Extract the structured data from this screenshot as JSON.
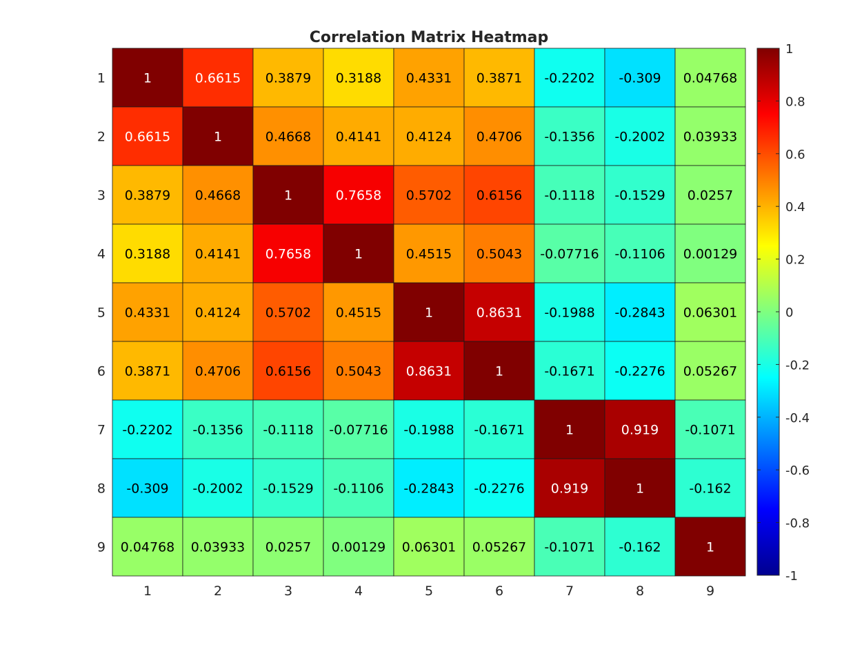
{
  "chart_data": {
    "type": "heatmap",
    "title": "Correlation Matrix Heatmap",
    "colormap": "jet",
    "x_labels": [
      "1",
      "2",
      "3",
      "4",
      "5",
      "6",
      "7",
      "8",
      "9"
    ],
    "y_labels": [
      "1",
      "2",
      "3",
      "4",
      "5",
      "6",
      "7",
      "8",
      "9"
    ],
    "values": [
      [
        1,
        0.6615,
        0.3879,
        0.3188,
        0.4331,
        0.3871,
        -0.2202,
        -0.309,
        0.04768
      ],
      [
        0.6615,
        1,
        0.4668,
        0.4141,
        0.4124,
        0.4706,
        -0.1356,
        -0.2002,
        0.03933
      ],
      [
        0.3879,
        0.4668,
        1,
        0.7658,
        0.5702,
        0.6156,
        -0.1118,
        -0.1529,
        0.0257
      ],
      [
        0.3188,
        0.4141,
        0.7658,
        1,
        0.4515,
        0.5043,
        -0.07716,
        -0.1106,
        0.00129
      ],
      [
        0.4331,
        0.4124,
        0.5702,
        0.4515,
        1,
        0.8631,
        -0.1988,
        -0.2843,
        0.06301
      ],
      [
        0.3871,
        0.4706,
        0.6156,
        0.5043,
        0.8631,
        1,
        -0.1671,
        -0.2276,
        0.05267
      ],
      [
        -0.2202,
        -0.1356,
        -0.1118,
        -0.07716,
        -0.1988,
        -0.1671,
        1,
        0.919,
        -0.1071
      ],
      [
        -0.309,
        -0.2002,
        -0.1529,
        -0.1106,
        -0.2843,
        -0.2276,
        0.919,
        1,
        -0.162
      ],
      [
        0.04768,
        0.03933,
        0.0257,
        0.00129,
        0.06301,
        0.05267,
        -0.1071,
        -0.162,
        1
      ]
    ],
    "cell_labels": [
      [
        "1",
        "0.6615",
        "0.3879",
        "0.3188",
        "0.4331",
        "0.3871",
        "-0.2202",
        "-0.309",
        "0.04768"
      ],
      [
        "0.6615",
        "1",
        "0.4668",
        "0.4141",
        "0.4124",
        "0.4706",
        "-0.1356",
        "-0.2002",
        "0.03933"
      ],
      [
        "0.3879",
        "0.4668",
        "1",
        "0.7658",
        "0.5702",
        "0.6156",
        "-0.1118",
        "-0.1529",
        "0.0257"
      ],
      [
        "0.3188",
        "0.4141",
        "0.7658",
        "1",
        "0.4515",
        "0.5043",
        "-0.07716",
        "-0.1106",
        "0.00129"
      ],
      [
        "0.4331",
        "0.4124",
        "0.5702",
        "0.4515",
        "1",
        "0.8631",
        "-0.1988",
        "-0.2843",
        "0.06301"
      ],
      [
        "0.3871",
        "0.4706",
        "0.6156",
        "0.5043",
        "0.8631",
        "1",
        "-0.1671",
        "-0.2276",
        "0.05267"
      ],
      [
        "-0.2202",
        "-0.1356",
        "-0.1118",
        "-0.07716",
        "-0.1988",
        "-0.1671",
        "1",
        "0.919",
        "-0.1071"
      ],
      [
        "-0.309",
        "-0.2002",
        "-0.1529",
        "-0.1106",
        "-0.2843",
        "-0.2276",
        "0.919",
        "1",
        "-0.162"
      ],
      [
        "0.04768",
        "0.03933",
        "0.0257",
        "0.00129",
        "0.06301",
        "0.05267",
        "-0.1071",
        "-0.162",
        "1"
      ]
    ],
    "color_limits": [
      -1,
      1
    ],
    "colorbar": {
      "location": "right",
      "ticks": [
        1,
        0.8,
        0.6,
        0.4,
        0.2,
        0,
        -0.2,
        -0.4,
        -0.6,
        -0.8,
        -1
      ],
      "tick_labels": [
        "1",
        "0.8",
        "0.6",
        "0.4",
        "0.2",
        "0",
        "-0.2",
        "-0.4",
        "-0.6",
        "-0.8",
        "-1"
      ]
    },
    "grid": true,
    "xlabel": "",
    "ylabel": ""
  }
}
